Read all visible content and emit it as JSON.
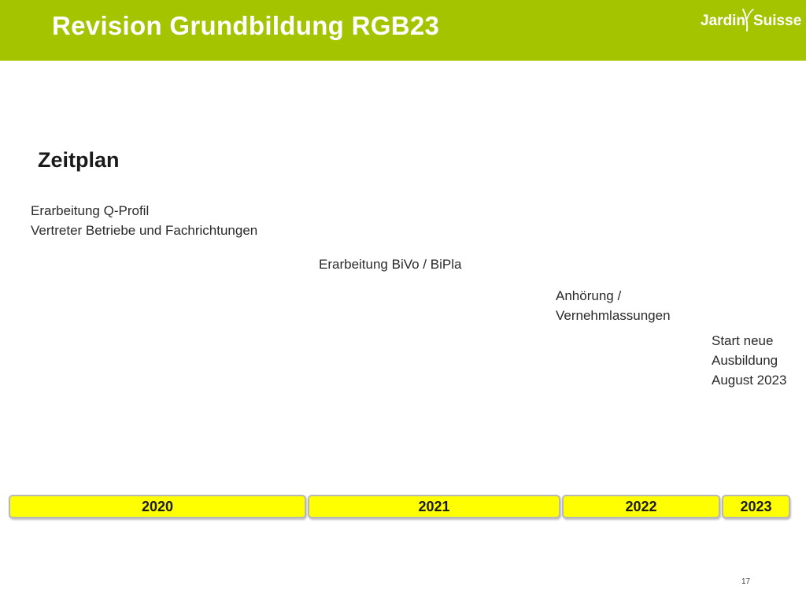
{
  "header": {
    "title": "Revision Grundbildung RGB23",
    "logo": {
      "word_1": "Jardin",
      "word_2": "Suisse",
      "mark_icon": "leaf-stroke-icon"
    }
  },
  "colors": {
    "header_bg": "#a4c400",
    "year_bg": "#ffff00",
    "year_border": "#b8b8b8"
  },
  "section_heading": "Zeitplan",
  "milestones": [
    {
      "lines": [
        "Erarbeitung Q-Profil",
        "Vertreter Betriebe und Fachrichtungen"
      ]
    },
    {
      "lines": [
        "Erarbeitung BiVo / BiPla"
      ]
    },
    {
      "lines": [
        "Anhörung /",
        "Vernehmlassungen"
      ]
    },
    {
      "lines": [
        "Start neue",
        "Ausbildung",
        "August 2023"
      ]
    }
  ],
  "timeline": {
    "years": [
      "2020",
      "2021",
      "2022",
      "2023"
    ]
  },
  "page_number": "17"
}
